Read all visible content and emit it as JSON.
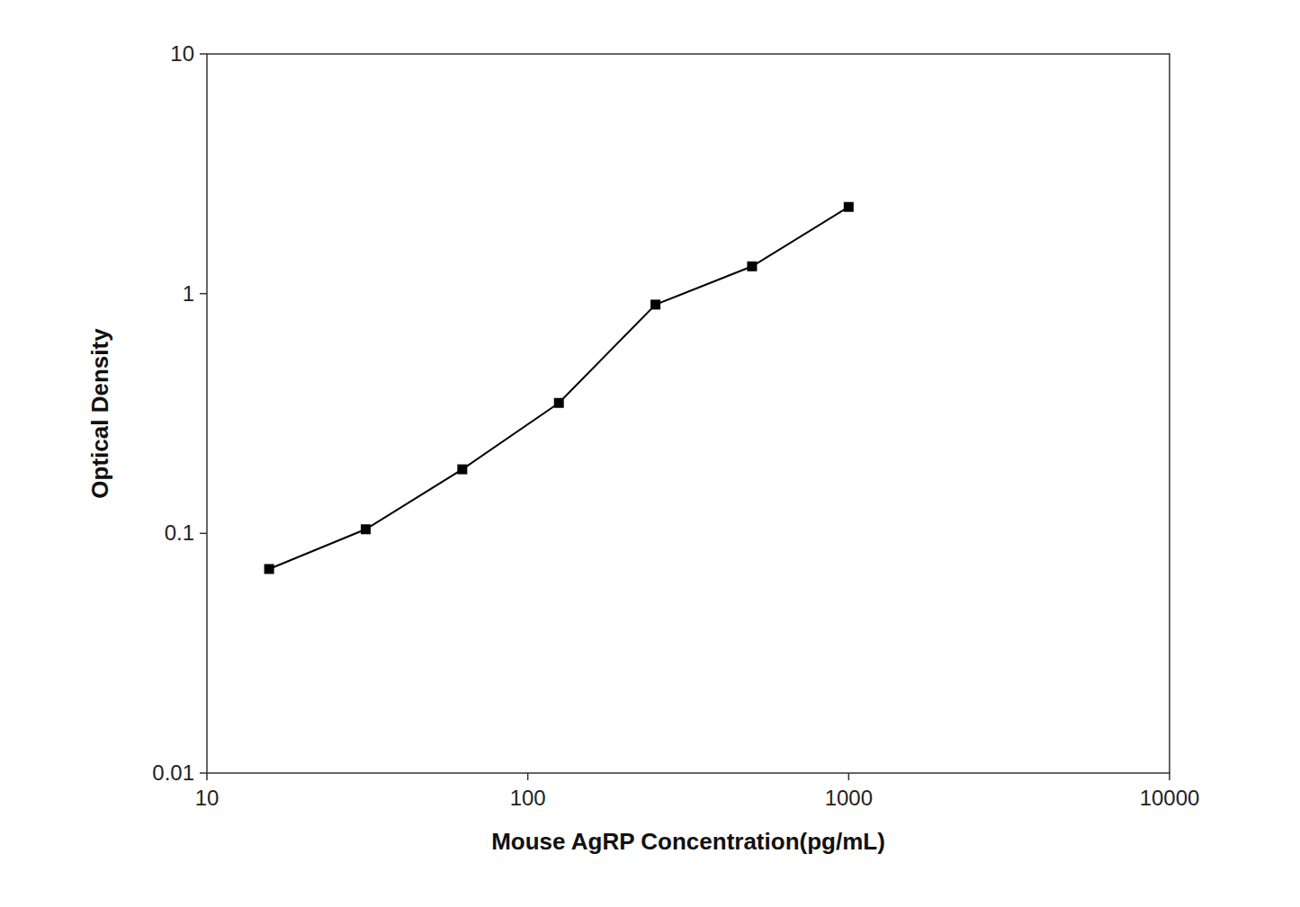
{
  "chart_data": {
    "type": "line",
    "x": [
      15.625,
      31.25,
      62.5,
      125,
      250,
      500,
      1000
    ],
    "values": [
      0.071,
      0.104,
      0.185,
      0.35,
      0.9,
      1.3,
      2.3
    ],
    "xlabel": "Mouse AgRP Concentration(pg/mL)",
    "ylabel": "Optical Density",
    "xlim": [
      10,
      10000
    ],
    "ylim": [
      0.01,
      10
    ],
    "xticks": [
      10,
      100,
      1000,
      10000
    ],
    "yticks": [
      0.01,
      0.1,
      1,
      10
    ],
    "log": true,
    "grid": false,
    "color": "#000000",
    "marker": "square"
  }
}
